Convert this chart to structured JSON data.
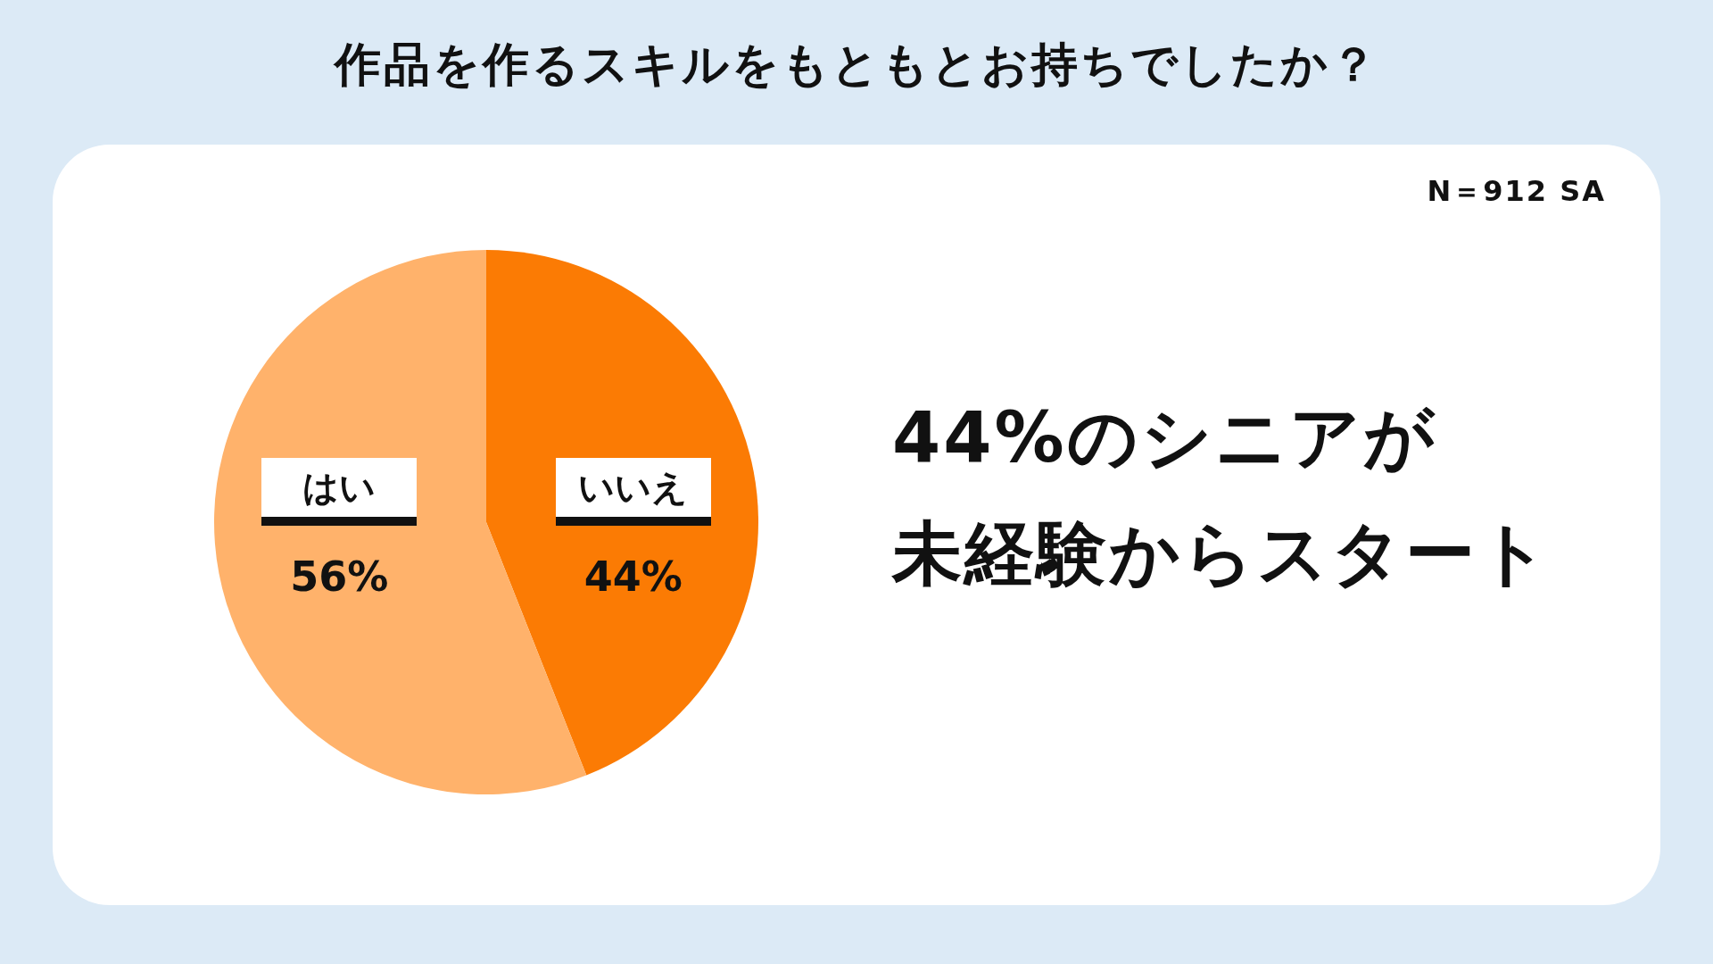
{
  "chart_data": {
    "type": "pie",
    "title": "作品を作るスキルをもともとお持ちでしたか？",
    "categories": [
      "いいえ",
      "はい"
    ],
    "values": [
      44,
      56
    ],
    "colors": [
      "#fb7b04",
      "#ffb26b"
    ],
    "value_labels": [
      "44%",
      "56%"
    ],
    "legend": false,
    "annotations": [
      "N＝912 SA",
      "44%のシニアが",
      "未経験からスタート"
    ]
  }
}
